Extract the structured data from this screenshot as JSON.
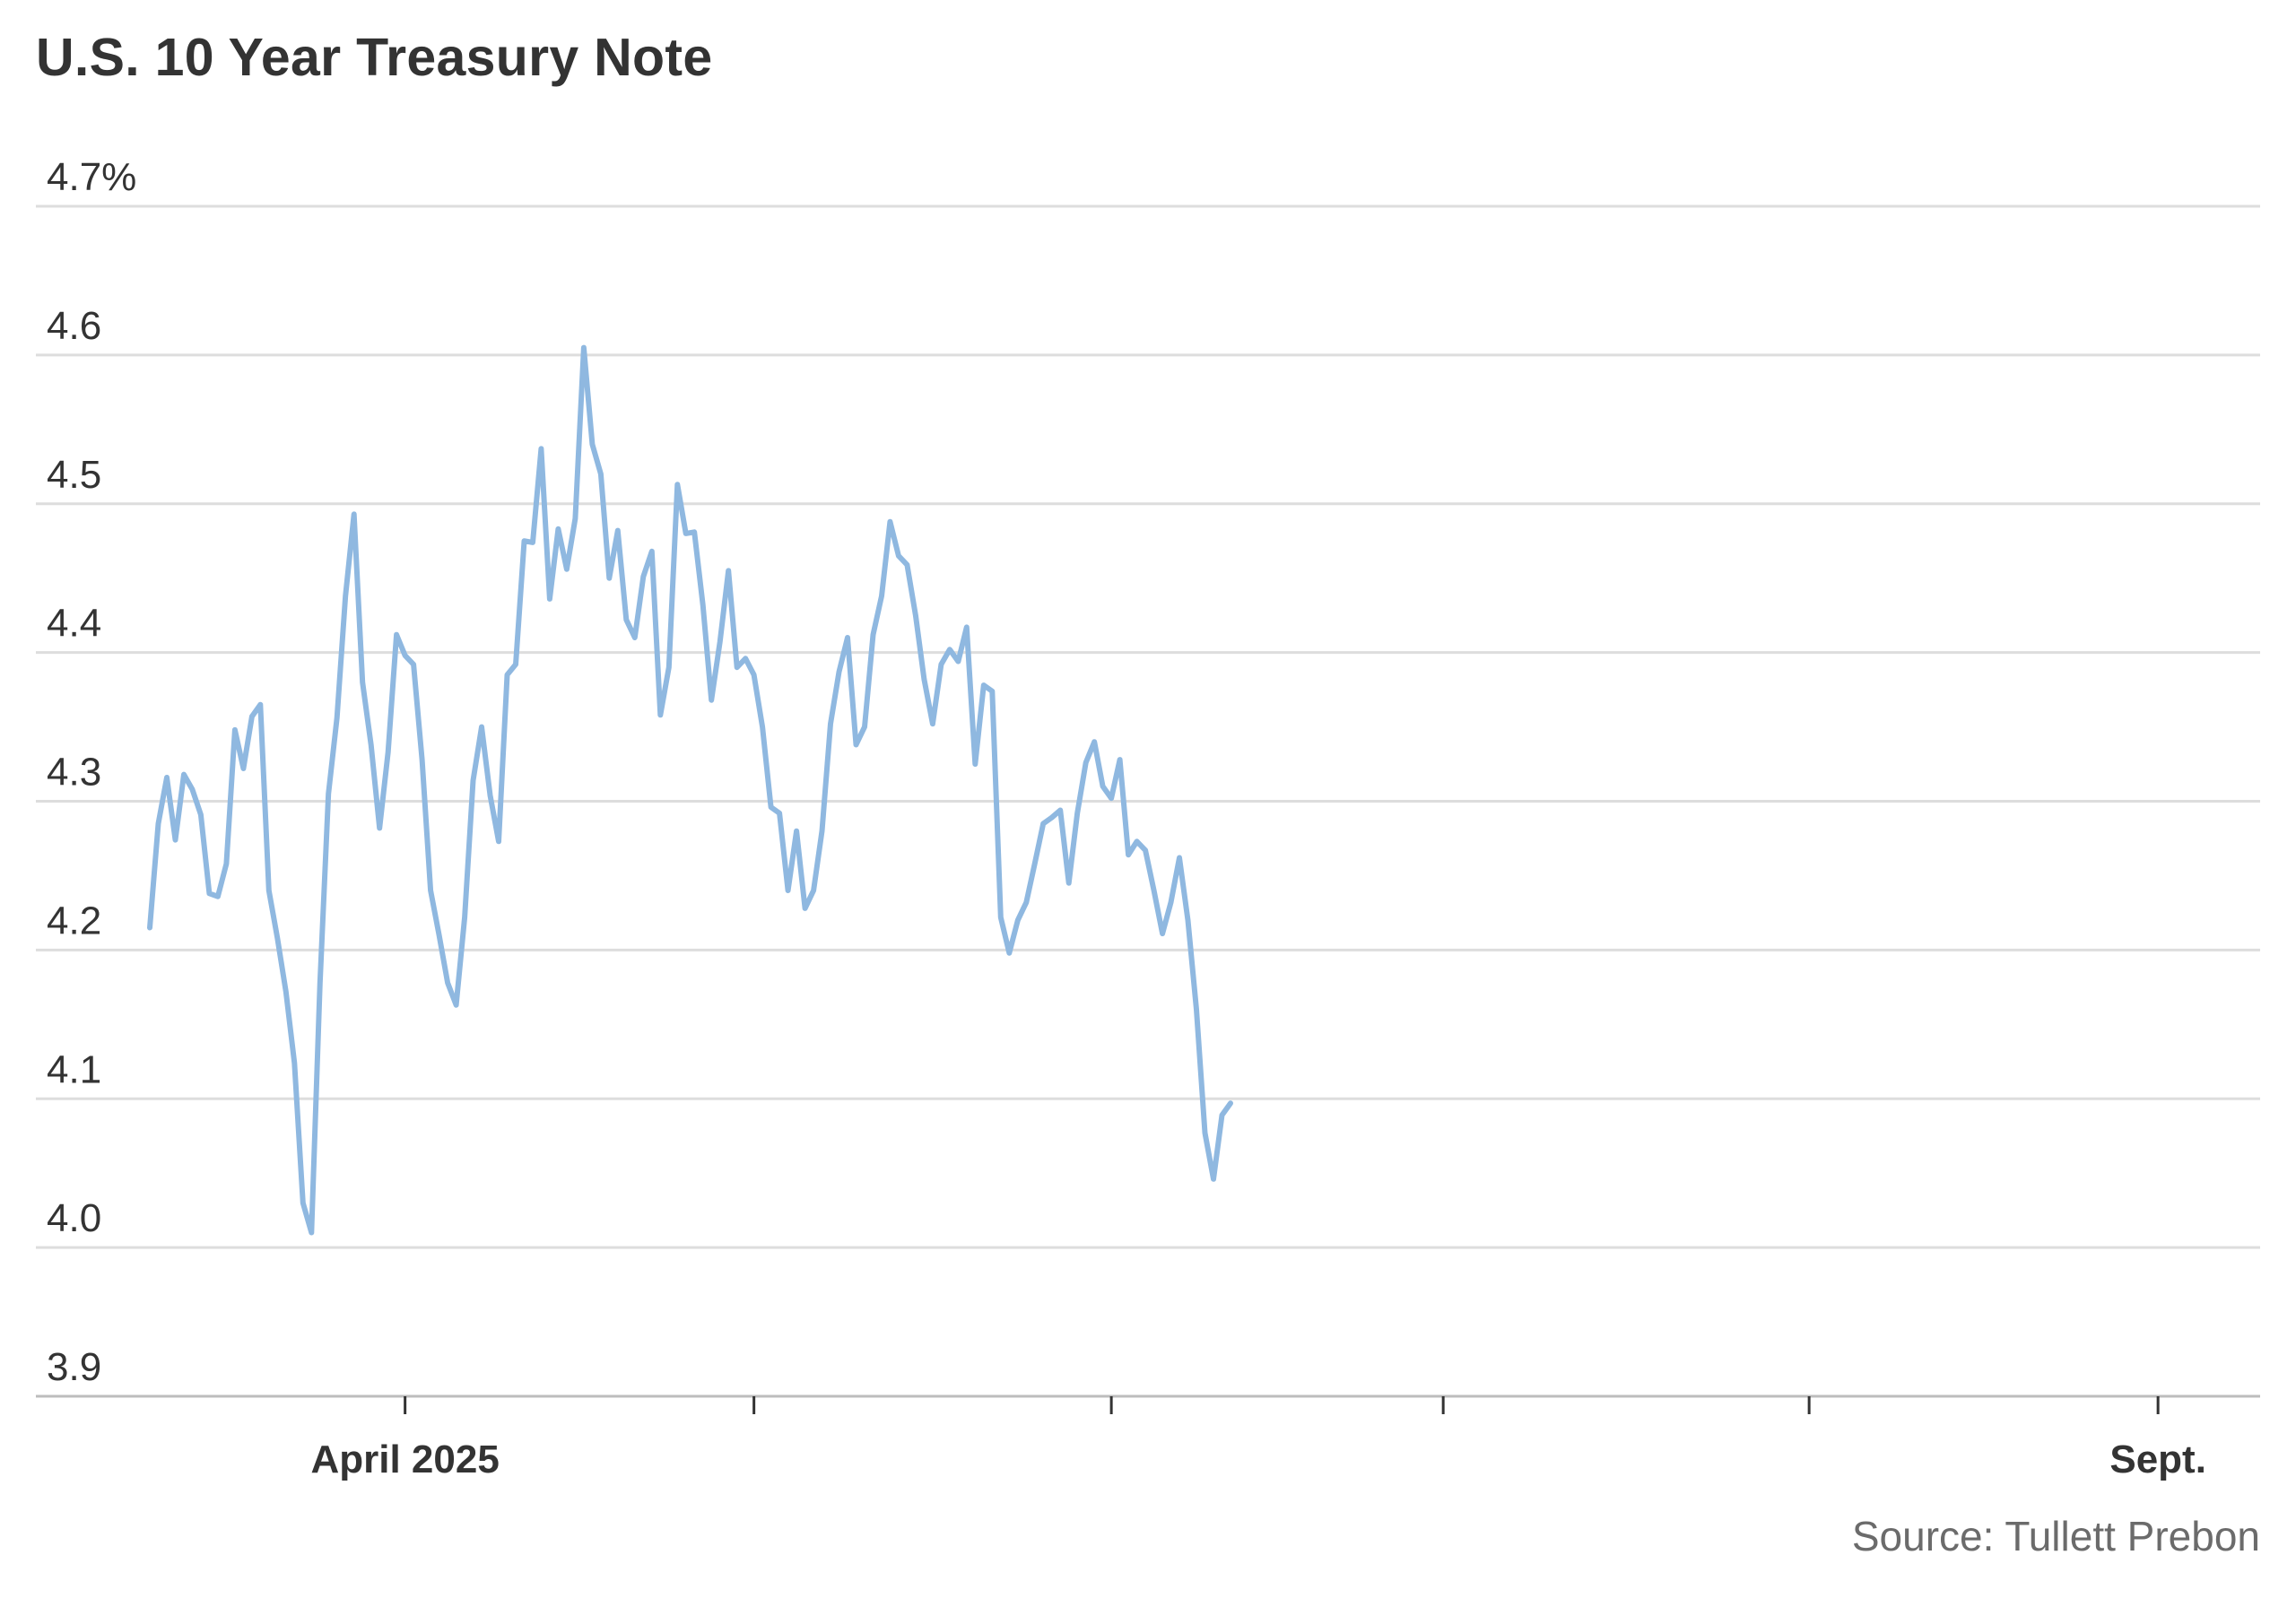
{
  "chart_data": {
    "type": "line",
    "title": "U.S. 10 Year Treasury Note",
    "xlabel": "",
    "ylabel": "",
    "ylim": [
      3.9,
      4.7
    ],
    "y_ticks": [
      3.9,
      4.0,
      4.1,
      4.2,
      4.3,
      4.4,
      4.5,
      4.6,
      4.7
    ],
    "y_tick_labels": [
      "3.9",
      "4.0",
      "4.1",
      "4.2",
      "4.3",
      "4.4",
      "4.5",
      "4.6",
      "4.7%"
    ],
    "x_ticks": [
      {
        "label": "April 2025",
        "index": 30
      },
      {
        "label": "",
        "index": 71
      },
      {
        "label": "",
        "index": 113
      },
      {
        "label": "",
        "index": 152
      },
      {
        "label": "",
        "index": 195
      },
      {
        "label": "Sept.",
        "index": 236
      }
    ],
    "x_range": [
      0,
      248
    ],
    "grid": true,
    "line_color": "#8fb8e0",
    "gridline_color": "#dddddd",
    "source": "Source: Tullett Prebon",
    "series": [
      {
        "values": [
          4.215,
          4.285,
          4.316,
          4.274,
          4.318,
          4.308,
          4.291,
          4.238,
          4.236,
          4.258,
          4.348,
          4.322,
          4.357,
          4.365,
          4.24,
          4.208,
          4.172,
          4.124,
          4.03,
          4.01,
          4.178,
          4.305,
          4.356,
          4.438,
          4.493,
          4.38,
          4.338,
          4.282,
          4.333,
          4.412,
          4.398,
          4.392,
          4.328,
          4.24,
          4.21,
          4.178,
          4.163,
          4.222,
          4.314,
          4.35,
          4.304,
          4.273,
          4.385,
          4.392,
          4.475,
          4.474,
          4.537,
          4.436,
          4.483,
          4.456,
          4.49,
          4.605,
          4.54,
          4.52,
          4.45,
          4.482,
          4.422,
          4.41,
          4.451,
          4.468,
          4.358,
          4.39,
          4.513,
          4.48,
          4.481,
          4.432,
          4.368,
          4.407,
          4.455,
          4.39,
          4.396,
          4.385,
          4.35,
          4.296,
          4.292,
          4.24,
          4.28,
          4.228,
          4.24,
          4.28,
          4.352,
          4.387,
          4.41,
          4.338,
          4.35,
          4.412,
          4.438,
          4.488,
          4.465,
          4.459,
          4.425,
          4.382,
          4.352,
          4.392,
          4.402,
          4.394,
          4.417,
          4.325,
          4.378,
          4.374,
          4.222,
          4.198,
          4.22,
          4.232,
          4.258,
          4.285,
          4.289,
          4.294,
          4.245,
          4.292,
          4.326,
          4.34,
          4.31,
          4.302,
          4.328,
          4.264,
          4.273,
          4.267,
          4.24,
          4.211,
          4.232,
          4.262,
          4.22,
          4.16,
          4.077,
          4.046,
          4.089,
          4.097
        ],
        "dates_note": null
      }
    ]
  }
}
